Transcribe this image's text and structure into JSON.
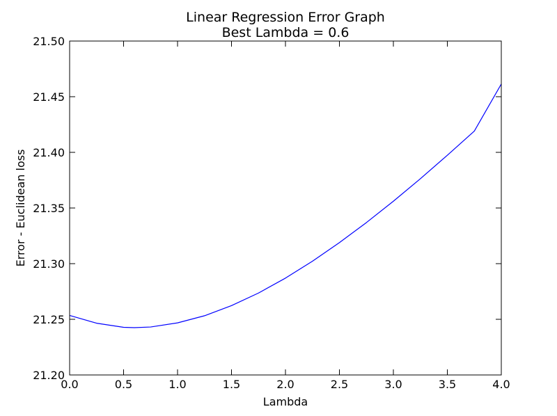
{
  "chart_data": {
    "type": "line",
    "title": "Linear Regression Error Graph",
    "subtitle": "Best Lambda = 0.6",
    "xlabel": "Lambda",
    "ylabel": "Error - Euclidean loss",
    "xlim": [
      0.0,
      4.0
    ],
    "ylim": [
      21.2,
      21.5
    ],
    "grid": false,
    "x_ticks": [
      "0.0",
      "0.5",
      "1.0",
      "1.5",
      "2.0",
      "2.5",
      "3.0",
      "3.5",
      "4.0"
    ],
    "y_ticks": [
      "21.20",
      "21.25",
      "21.30",
      "21.35",
      "21.40",
      "21.45",
      "21.50"
    ],
    "series": [
      {
        "color": "#0000ff",
        "x": [
          0.0,
          0.25,
          0.5,
          0.6,
          0.75,
          1.0,
          1.25,
          1.5,
          1.75,
          2.0,
          2.25,
          2.5,
          2.75,
          3.0,
          3.25,
          3.5,
          3.75,
          4.0
        ],
        "y": [
          21.2535,
          21.2465,
          21.2428,
          21.2425,
          21.2431,
          21.2468,
          21.2532,
          21.2623,
          21.2736,
          21.287,
          21.3022,
          21.3189,
          21.3369,
          21.3561,
          21.3763,
          21.3974,
          21.4191,
          21.4614
        ]
      }
    ]
  }
}
